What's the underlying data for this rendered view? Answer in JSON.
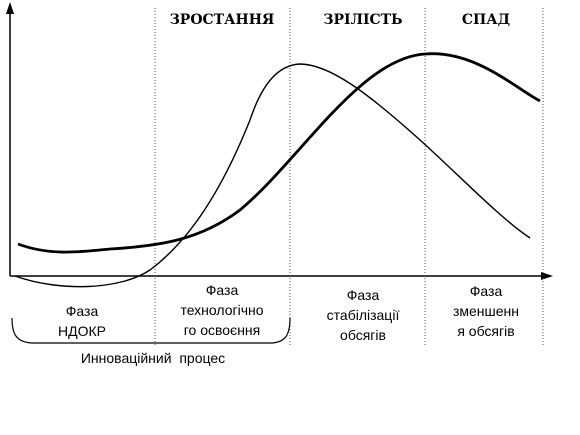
{
  "stage_titles": {
    "growth": "ЗРОСТАННЯ",
    "maturity": "ЗРІЛІСТЬ",
    "decline": "СПАД"
  },
  "phases": {
    "rnd": [
      "Фаза",
      "НДОКР"
    ],
    "tech": [
      "Фаза",
      "технологічно",
      "го освоєння"
    ],
    "stab": [
      "Фаза",
      "стабілізації",
      "обсягів"
    ],
    "reduce": [
      "Фаза",
      "зменшенн",
      "я обсягів"
    ]
  },
  "process_label": "Инноваційний  процес",
  "colors": {
    "line": "#000000",
    "background": "#ffffff"
  }
}
